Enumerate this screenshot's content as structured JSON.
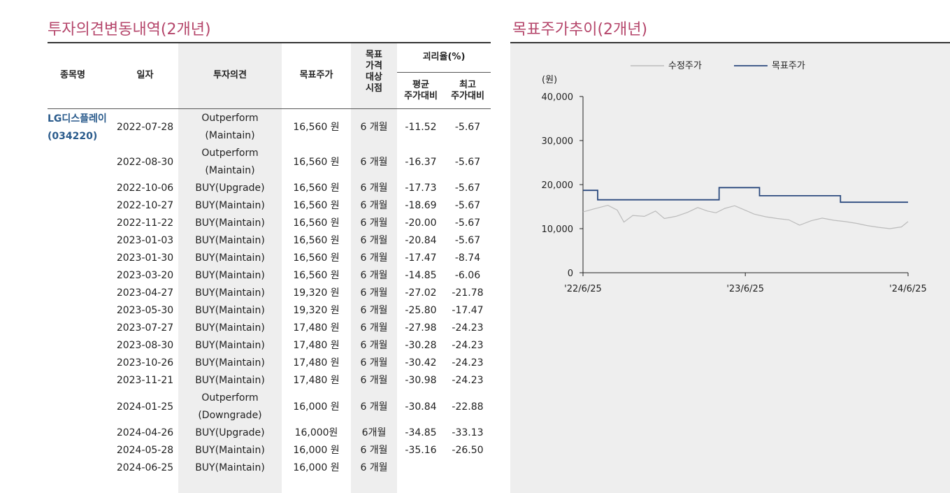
{
  "left_title": "투자의견변동내역(2개년)",
  "right_title": "목표주가추이(2개년)",
  "table": {
    "headers": {
      "company": "종목명",
      "date": "일자",
      "opinion": "투자의견",
      "target": "목표주가",
      "period": "목표\n가격\n대상\n시점",
      "disparity": "괴리율(%)",
      "avg": "평균\n주가대비",
      "max": "최고\n주가대비"
    },
    "company": "LG디스플레이\n(034220)",
    "rows": [
      {
        "date": "2022-07-28",
        "opinion": "Outperform\n(Maintain)",
        "target": "16,560 원",
        "period": "6 개월",
        "avg": "-11.52",
        "max": "-5.67"
      },
      {
        "date": "2022-08-30",
        "opinion": "Outperform\n(Maintain)",
        "target": "16,560 원",
        "period": "6 개월",
        "avg": "-16.37",
        "max": "-5.67"
      },
      {
        "date": "2022-10-06",
        "opinion": "BUY(Upgrade)",
        "target": "16,560 원",
        "period": "6 개월",
        "avg": "-17.73",
        "max": "-5.67"
      },
      {
        "date": "2022-10-27",
        "opinion": "BUY(Maintain)",
        "target": "16,560 원",
        "period": "6 개월",
        "avg": "-18.69",
        "max": "-5.67"
      },
      {
        "date": "2022-11-22",
        "opinion": "BUY(Maintain)",
        "target": "16,560 원",
        "period": "6 개월",
        "avg": "-20.00",
        "max": "-5.67"
      },
      {
        "date": "2023-01-03",
        "opinion": "BUY(Maintain)",
        "target": "16,560 원",
        "period": "6 개월",
        "avg": "-20.84",
        "max": "-5.67"
      },
      {
        "date": "2023-01-30",
        "opinion": "BUY(Maintain)",
        "target": "16,560 원",
        "period": "6 개월",
        "avg": "-17.47",
        "max": "-8.74"
      },
      {
        "date": "2023-03-20",
        "opinion": "BUY(Maintain)",
        "target": "16,560 원",
        "period": "6 개월",
        "avg": "-14.85",
        "max": "-6.06"
      },
      {
        "date": "2023-04-27",
        "opinion": "BUY(Maintain)",
        "target": "19,320 원",
        "period": "6 개월",
        "avg": "-27.02",
        "max": "-21.78"
      },
      {
        "date": "2023-05-30",
        "opinion": "BUY(Maintain)",
        "target": "19,320 원",
        "period": "6 개월",
        "avg": "-25.80",
        "max": "-17.47"
      },
      {
        "date": "2023-07-27",
        "opinion": "BUY(Maintain)",
        "target": "17,480 원",
        "period": "6 개월",
        "avg": "-27.98",
        "max": "-24.23"
      },
      {
        "date": "2023-08-30",
        "opinion": "BUY(Maintain)",
        "target": "17,480 원",
        "period": "6 개월",
        "avg": "-30.28",
        "max": "-24.23"
      },
      {
        "date": "2023-10-26",
        "opinion": "BUY(Maintain)",
        "target": "17,480 원",
        "period": "6 개월",
        "avg": "-30.42",
        "max": "-24.23"
      },
      {
        "date": "2023-11-21",
        "opinion": "BUY(Maintain)",
        "target": "17,480 원",
        "period": "6 개월",
        "avg": "-30.98",
        "max": "-24.23"
      },
      {
        "date": "2024-01-25",
        "opinion": "Outperform\n(Downgrade)",
        "target": "16,000 원",
        "period": "6 개월",
        "avg": "-30.84",
        "max": "-22.88"
      },
      {
        "date": "2024-04-26",
        "opinion": "BUY(Upgrade)",
        "target": "16,000원",
        "period": "6개월",
        "avg": "-34.85",
        "max": "-33.13"
      },
      {
        "date": "2024-05-28",
        "opinion": "BUY(Maintain)",
        "target": "16,000 원",
        "period": "6 개월",
        "avg": "-35.16",
        "max": "-26.50"
      },
      {
        "date": "2024-06-25",
        "opinion": "BUY(Maintain)",
        "target": "16,000 원",
        "period": "6 개월",
        "avg": "",
        "max": ""
      }
    ]
  },
  "chart_data": {
    "type": "line",
    "ylabel": "(원)",
    "ylim": [
      0,
      40000
    ],
    "yticks": [
      "40,000",
      "30,000",
      "20,000",
      "10,000",
      "0"
    ],
    "xticks": [
      "'22/6/25",
      "'23/6/25",
      "'24/6/25"
    ],
    "legend_position": "top",
    "grid": false,
    "series": [
      {
        "name": "수정주가",
        "color": "#bbbbbb",
        "x": [
          "2022-06-25",
          "2022-07-20",
          "2022-08-20",
          "2022-09-10",
          "2022-09-25",
          "2022-10-15",
          "2022-11-10",
          "2022-12-05",
          "2022-12-25",
          "2023-01-20",
          "2023-02-15",
          "2023-03-10",
          "2023-04-01",
          "2023-04-20",
          "2023-05-10",
          "2023-06-01",
          "2023-06-20",
          "2023-07-15",
          "2023-08-10",
          "2023-09-05",
          "2023-10-01",
          "2023-10-25",
          "2023-11-20",
          "2023-12-15",
          "2024-01-10",
          "2024-02-05",
          "2024-03-01",
          "2024-03-25",
          "2024-04-20",
          "2024-05-15",
          "2024-06-10",
          "2024-06-25"
        ],
        "values": [
          13800,
          14500,
          15300,
          14200,
          11500,
          13000,
          12800,
          14000,
          12300,
          12800,
          13700,
          14800,
          14000,
          13600,
          14600,
          15200,
          14400,
          13300,
          12700,
          12300,
          12000,
          10800,
          11800,
          12400,
          11900,
          11600,
          11200,
          10700,
          10300,
          10000,
          10400,
          11600
        ]
      },
      {
        "name": "목표주가",
        "color": "#2b4a7e",
        "x": [
          "2022-06-25",
          "2022-07-28",
          "2022-07-28",
          "2023-04-27",
          "2023-04-27",
          "2023-07-27",
          "2023-07-27",
          "2024-01-25",
          "2024-01-25",
          "2024-06-25"
        ],
        "values": [
          18700,
          18700,
          16560,
          16560,
          19320,
          19320,
          17480,
          17480,
          16000,
          16000
        ]
      }
    ]
  }
}
